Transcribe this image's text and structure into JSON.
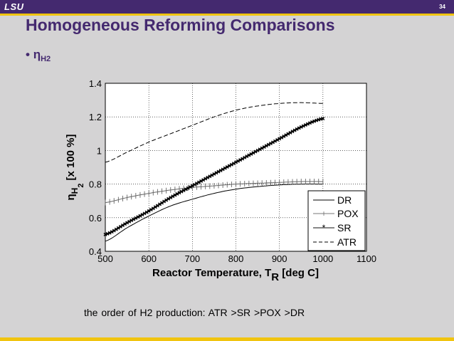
{
  "header": {
    "logo": "LSU",
    "page_number": "34"
  },
  "slide": {
    "title": "Homogeneous Reforming Comparisons",
    "bullet_symbol": "•",
    "bullet_main": "η",
    "bullet_sub": "H2",
    "note": "the order of H2 production:   ATR >SR >POX >DR"
  },
  "colors": {
    "header_bg": "#44296f",
    "accent": "#f1c40f",
    "title": "#44296f",
    "slide_bg": "#d4d3d4",
    "plot_bg": "#ffffff"
  },
  "chart_data": {
    "type": "line",
    "title": "",
    "xlabel": "Reactor Temperature, T",
    "xlabel_sub": "R",
    "xlabel_unit": " [deg C]",
    "ylabel_eta": "η",
    "ylabel_sub1": "H",
    "ylabel_sub2": "2",
    "ylabel_unit": "[x 100 %]",
    "xlim": [
      500,
      1100
    ],
    "ylim": [
      0.4,
      1.4
    ],
    "xticks": [
      "500",
      "600",
      "700",
      "800",
      "900",
      "1000",
      "1100"
    ],
    "yticks": [
      "0.4",
      "0.6",
      "0.8",
      "1",
      "1.2",
      "1.4"
    ],
    "grid": true,
    "legend_position": "bottom-right",
    "x": [
      500,
      550,
      600,
      650,
      700,
      750,
      800,
      850,
      900,
      950,
      1000
    ],
    "series": [
      {
        "name": "DR",
        "style": "solid",
        "values": [
          0.46,
          0.54,
          0.61,
          0.67,
          0.71,
          0.745,
          0.77,
          0.785,
          0.795,
          0.8,
          0.8
        ]
      },
      {
        "name": "POX",
        "style": "plus",
        "values": [
          0.69,
          0.72,
          0.745,
          0.765,
          0.78,
          0.79,
          0.8,
          0.805,
          0.81,
          0.815,
          0.815
        ]
      },
      {
        "name": "SR",
        "style": "star",
        "values": [
          0.5,
          0.57,
          0.64,
          0.72,
          0.79,
          0.86,
          0.93,
          1.0,
          1.07,
          1.14,
          1.19
        ]
      },
      {
        "name": "ATR",
        "style": "dashed",
        "values": [
          0.93,
          0.99,
          1.05,
          1.1,
          1.15,
          1.2,
          1.24,
          1.265,
          1.28,
          1.285,
          1.28
        ]
      }
    ]
  }
}
